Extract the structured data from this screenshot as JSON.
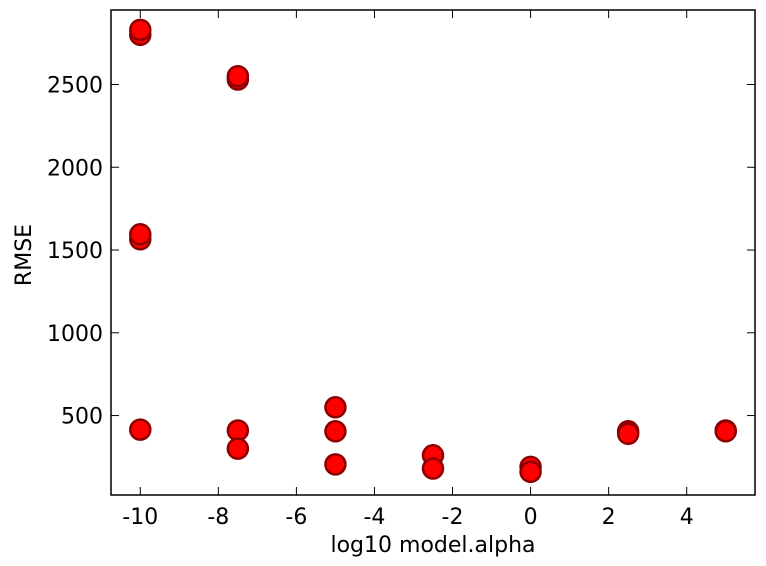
{
  "chart_data": {
    "type": "scatter",
    "title": "",
    "xlabel": "log10 model.alpha",
    "ylabel": "RMSE",
    "xlim": [
      -10.75,
      5.75
    ],
    "ylim": [
      20,
      2950
    ],
    "xticks": [
      -10,
      -8,
      -6,
      -4,
      -2,
      0,
      2,
      4
    ],
    "xtick_labels": [
      "-10",
      "-8",
      "-6",
      "-4",
      "-2",
      "0",
      "2",
      "4"
    ],
    "yticks": [
      500,
      1000,
      1500,
      2000,
      2500
    ],
    "ytick_labels": [
      "500",
      "1000",
      "1500",
      "2000",
      "2500"
    ],
    "grid": false,
    "marker_color": "#ff0000",
    "marker_edge_color": "#8b0000",
    "points": [
      {
        "x": -10,
        "y": 2800
      },
      {
        "x": -10,
        "y": 2830
      },
      {
        "x": -10,
        "y": 1565
      },
      {
        "x": -10,
        "y": 1595
      },
      {
        "x": -10,
        "y": 415
      },
      {
        "x": -7.5,
        "y": 2530
      },
      {
        "x": -7.5,
        "y": 2550
      },
      {
        "x": -7.5,
        "y": 410
      },
      {
        "x": -7.5,
        "y": 300
      },
      {
        "x": -5,
        "y": 550
      },
      {
        "x": -5,
        "y": 405
      },
      {
        "x": -5,
        "y": 205
      },
      {
        "x": -2.5,
        "y": 260
      },
      {
        "x": -2.5,
        "y": 180
      },
      {
        "x": 0,
        "y": 190
      },
      {
        "x": 0,
        "y": 160
      },
      {
        "x": 2.5,
        "y": 405
      },
      {
        "x": 2.5,
        "y": 390
      },
      {
        "x": 5,
        "y": 410
      },
      {
        "x": 5,
        "y": 405
      }
    ]
  }
}
